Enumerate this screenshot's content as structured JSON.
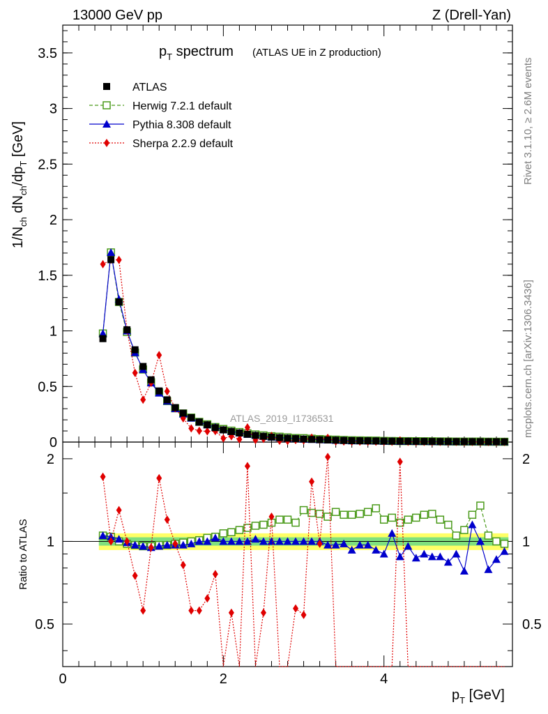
{
  "header": {
    "left": "13000 GeV pp",
    "right": "Z (Drell-Yan)"
  },
  "plot_title": {
    "main": "p",
    "main_sub": "T",
    "main_rest": " spectrum",
    "note": "(ATLAS UE in Z production)"
  },
  "watermark": "ATLAS_2019_I1736531",
  "side_text": {
    "top": "Rivet 3.1.10, ≥ 2.6M events",
    "bottom": "mcplots.cern.ch [arXiv:1306.3436]"
  },
  "labels": {
    "ylabel_top": "1/N_ch dN_ch/dp_T [GeV]",
    "ylabel_bottom": "Ratio to ATLAS",
    "xlabel_main": "p",
    "xlabel_sub": "T",
    "xlabel_unit": " [GeV]"
  },
  "legend": [
    {
      "label": "ATLAS",
      "color": "#000000",
      "marker": "filled-square"
    },
    {
      "label": "Herwig 7.2.1 default",
      "color": "#4a9a1a",
      "marker": "open-square",
      "line": "dashed"
    },
    {
      "label": "Pythia 8.308 default",
      "color": "#0000cc",
      "marker": "filled-triangle",
      "line": "solid"
    },
    {
      "label": "Sherpa 2.2.9 default",
      "color": "#e00000",
      "marker": "filled-diamond",
      "line": "dotted"
    }
  ],
  "chart_data": {
    "type": "line",
    "x": [
      0.5,
      0.6,
      0.7,
      0.8,
      0.9,
      1.0,
      1.1,
      1.2,
      1.3,
      1.4,
      1.5,
      1.6,
      1.7,
      1.8,
      1.9,
      2.0,
      2.1,
      2.2,
      2.3,
      2.4,
      2.5,
      2.6,
      2.7,
      2.8,
      2.9,
      3.0,
      3.1,
      3.2,
      3.3,
      3.4,
      3.5,
      3.6,
      3.7,
      3.8,
      3.9,
      4.0,
      4.1,
      4.2,
      4.3,
      4.4,
      4.5,
      4.6,
      4.7,
      4.8,
      4.9,
      5.0,
      5.1,
      5.2,
      5.3,
      5.4,
      5.5
    ],
    "main_ylim": [
      0,
      3.75
    ],
    "main_yticks": [
      {
        "v": 0,
        "label": "0"
      },
      {
        "v": 0.5,
        "label": "0.5"
      },
      {
        "v": 1,
        "label": "1"
      },
      {
        "v": 1.5,
        "label": "1.5"
      },
      {
        "v": 2,
        "label": "2"
      },
      {
        "v": 2.5,
        "label": "2.5"
      },
      {
        "v": 3,
        "label": "3"
      },
      {
        "v": 3.5,
        "label": "3.5"
      }
    ],
    "ratio_ylim": [
      0.35,
      2.3
    ],
    "ratio_yticks": [
      {
        "v": 0.5,
        "label": "0.5"
      },
      {
        "v": 1,
        "label": "1"
      },
      {
        "v": 2,
        "label": "2"
      }
    ],
    "xlim": [
      0,
      5.6
    ],
    "xticks": [
      {
        "v": 0,
        "label": "0"
      },
      {
        "v": 2,
        "label": "2"
      },
      {
        "v": 4,
        "label": "4"
      }
    ],
    "series": [
      {
        "name": "ATLAS",
        "values": [
          0.93,
          1.64,
          1.26,
          1.01,
          0.83,
          0.68,
          0.56,
          0.46,
          0.38,
          0.31,
          0.26,
          0.22,
          0.18,
          0.155,
          0.13,
          0.11,
          0.095,
          0.082,
          0.07,
          0.06,
          0.052,
          0.045,
          0.04,
          0.035,
          0.031,
          0.027,
          0.024,
          0.021,
          0.019,
          0.017,
          0.015,
          0.013,
          0.012,
          0.011,
          0.01,
          0.009,
          0.008,
          0.0075,
          0.007,
          0.0065,
          0.006,
          0.0055,
          0.005,
          0.0046,
          0.0042,
          0.0038,
          0.0035,
          0.0032,
          0.003,
          0.0028,
          0.0026
        ]
      },
      {
        "name": "Herwig 7.2.1 default",
        "ratio": [
          1.05,
          1.04,
          1.0,
          0.98,
          0.97,
          0.96,
          0.96,
          0.97,
          0.97,
          0.98,
          0.99,
          1.0,
          1.01,
          1.03,
          1.04,
          1.07,
          1.08,
          1.1,
          1.12,
          1.14,
          1.15,
          1.17,
          1.2,
          1.2,
          1.17,
          1.3,
          1.27,
          1.26,
          1.23,
          1.28,
          1.25,
          1.25,
          1.26,
          1.28,
          1.32,
          1.2,
          1.22,
          1.17,
          1.2,
          1.22,
          1.25,
          1.26,
          1.2,
          1.15,
          1.05,
          1.1,
          1.25,
          1.35,
          1.05,
          1.0,
          0.98
        ]
      },
      {
        "name": "Pythia 8.308 default",
        "ratio": [
          1.05,
          1.04,
          1.02,
          0.99,
          0.97,
          0.96,
          0.95,
          0.96,
          0.97,
          0.97,
          0.97,
          0.98,
          1.0,
          1.0,
          1.03,
          1.0,
          1.0,
          1.0,
          1.0,
          1.02,
          1.0,
          1.0,
          1.0,
          1.0,
          1.0,
          1.0,
          1.0,
          1.0,
          0.97,
          0.97,
          0.98,
          0.93,
          0.97,
          0.97,
          0.93,
          0.9,
          1.07,
          0.88,
          0.96,
          0.87,
          0.9,
          0.88,
          0.88,
          0.84,
          0.9,
          0.78,
          1.15,
          1.0,
          0.79,
          0.86,
          0.92
        ]
      },
      {
        "name": "Sherpa 2.2.9 default",
        "ratio": [
          1.72,
          1.0,
          1.3,
          1.0,
          0.75,
          0.56,
          0.95,
          1.7,
          1.2,
          0.98,
          0.82,
          0.56,
          0.56,
          0.62,
          0.76,
          0.3,
          0.55,
          0.3,
          1.88,
          0.3,
          0.55,
          1.23,
          0.3,
          0.3,
          0.57,
          0.54,
          1.65,
          0.98,
          2.03,
          0.3,
          0.3,
          0.3,
          0.3,
          0.3,
          0.3,
          0.3,
          0.3,
          1.95,
          0.3,
          0.3,
          0.3,
          0.3,
          0.3,
          0.3,
          0.3,
          0.3,
          0.3,
          0.3,
          0.3,
          0.3,
          0.3
        ]
      }
    ],
    "uncertainty_band": {
      "inner_color": "#7fe07f",
      "outer_color": "#ffff66",
      "inner_halfwidth": 0.035,
      "outer_halfwidth": 0.07
    }
  }
}
